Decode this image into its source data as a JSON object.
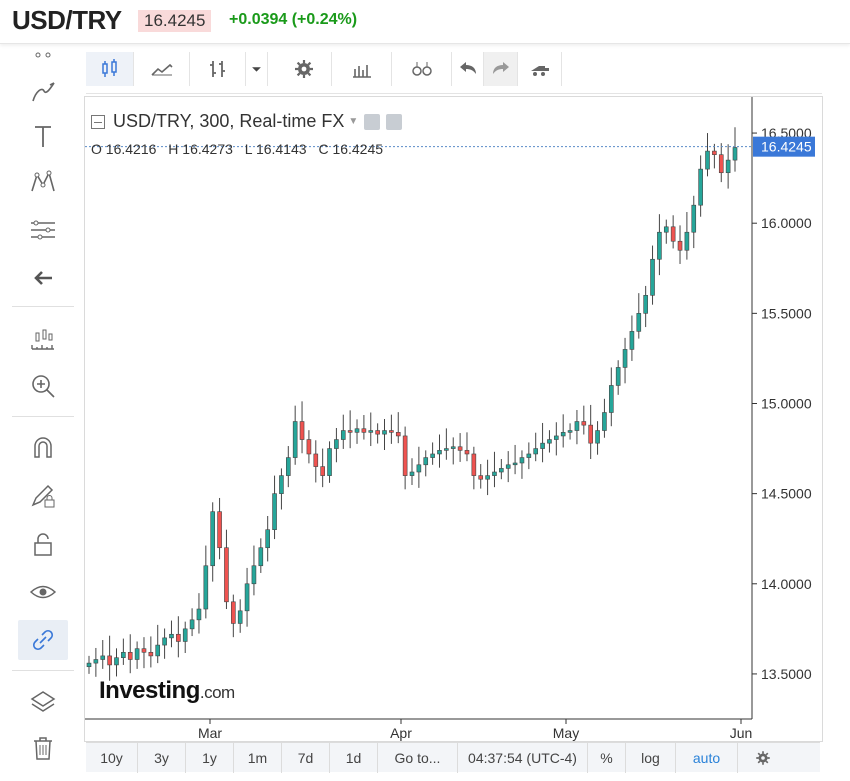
{
  "header": {
    "symbol": "USD/TRY",
    "last": "16.4245",
    "change": "+0.0394 (+0.24%)"
  },
  "legend": {
    "title": "USD/TRY, 300, Real-time FX",
    "open": "O 16.4216",
    "high": "H 16.4273",
    "low": "L 16.4143",
    "close": "C 16.4245"
  },
  "logo": {
    "main": "Investing",
    "suffix": ".com"
  },
  "left_toolbar": [
    "crosshair-icon",
    "trend-line-icon",
    "text-icon",
    "pattern-icon",
    "fib-icon",
    "back-arrow-icon",
    "measure-icon",
    "zoom-in-icon",
    "magnet-icon",
    "lock-drawing-icon",
    "unlock-icon",
    "eye-icon",
    "link-icon",
    "layers-icon",
    "trash-icon"
  ],
  "top_toolbar": [
    "candles-icon",
    "line-chart-icon",
    "bars-icon",
    "dropdown-icon",
    "settings-icon",
    "indicators-icon",
    "compare-icon",
    "undo-icon",
    "redo-icon",
    "alert-icon"
  ],
  "bottom_bar": {
    "ranges": [
      "10y",
      "3y",
      "1y",
      "1m",
      "7d",
      "1d"
    ],
    "goto": "Go to...",
    "time": "04:37:54 (UTC-4)",
    "percent": "%",
    "log": "log",
    "auto": "auto"
  },
  "colors": {
    "up": "#26a69a",
    "down": "#ef5350",
    "accent": "#3a78d8",
    "line": "#5a8bc8"
  },
  "chart_data": {
    "type": "candlestick",
    "title": "USD/TRY, 300, Real-time FX",
    "x_ticks": [
      "Mar",
      "Apr",
      "May",
      "Jun"
    ],
    "y_ticks": [
      "16.5000",
      "16.0000",
      "15.5000",
      "15.0000",
      "14.5000",
      "14.0000",
      "13.5000"
    ],
    "ylim": [
      13.25,
      16.7
    ],
    "last_price_label": "16.4245",
    "series_close": [
      13.56,
      13.58,
      13.6,
      13.55,
      13.59,
      13.62,
      13.58,
      13.64,
      13.62,
      13.6,
      13.66,
      13.7,
      13.72,
      13.68,
      13.75,
      13.8,
      13.86,
      14.1,
      14.4,
      14.2,
      13.9,
      13.78,
      13.85,
      14.0,
      14.1,
      14.2,
      14.3,
      14.5,
      14.6,
      14.7,
      14.9,
      14.8,
      14.72,
      14.65,
      14.6,
      14.75,
      14.8,
      14.85,
      14.84,
      14.86,
      14.84,
      14.85,
      14.83,
      14.85,
      14.84,
      14.82,
      14.6,
      14.62,
      14.66,
      14.7,
      14.72,
      14.74,
      14.75,
      14.76,
      14.74,
      14.72,
      14.6,
      14.58,
      14.6,
      14.62,
      14.64,
      14.66,
      14.67,
      14.7,
      14.72,
      14.75,
      14.78,
      14.8,
      14.82,
      14.84,
      14.85,
      14.9,
      14.88,
      14.78,
      14.85,
      14.95,
      15.1,
      15.2,
      15.3,
      15.4,
      15.5,
      15.6,
      15.8,
      15.95,
      15.98,
      15.9,
      15.85,
      15.95,
      16.1,
      16.3,
      16.4,
      16.38,
      16.28,
      16.35,
      16.42
    ]
  }
}
